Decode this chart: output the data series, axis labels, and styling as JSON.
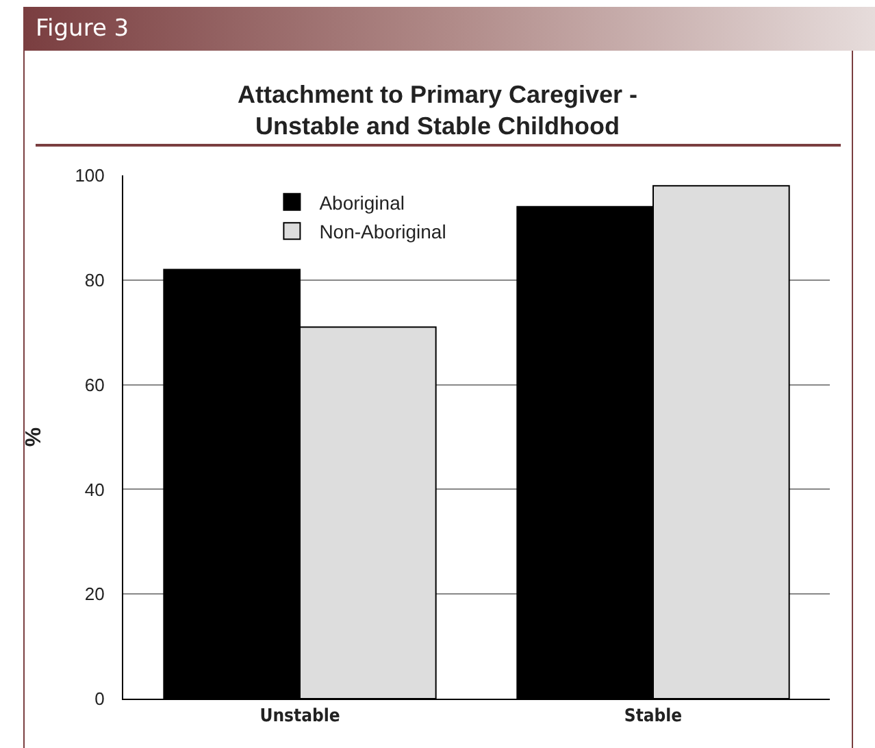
{
  "chart_data": {
    "type": "bar",
    "title": "Attachment to Primary Caregiver - Unstable and Stable Childhood",
    "ylabel": "%",
    "annotations": [
      "Figure 3"
    ],
    "categories": [
      "Unstable",
      "Stable"
    ],
    "series": [
      {
        "name": "Aboriginal",
        "color": "#000000",
        "values": [
          82,
          94
        ]
      },
      {
        "name": "Non-Aboriginal",
        "color": "#dddddd",
        "values": [
          71,
          98
        ]
      }
    ],
    "ylim": [
      0,
      100
    ],
    "yticks": [
      0,
      20,
      40,
      60,
      80,
      100
    ],
    "grid": "y",
    "legend": "top left"
  }
}
